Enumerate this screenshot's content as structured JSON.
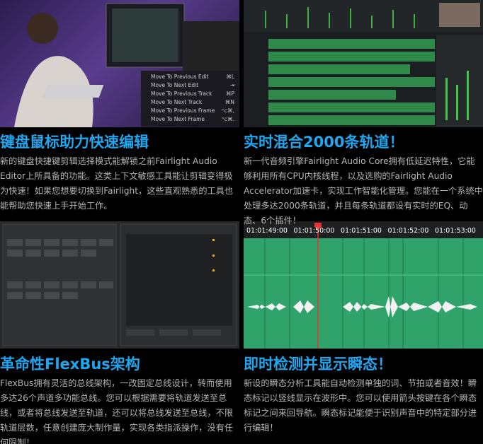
{
  "menu": [
    {
      "label": "Move To Previous Edit",
      "shortcut": "⌘L"
    },
    {
      "label": "Move To Next Edit",
      "shortcut": "⇥"
    },
    {
      "label": "Move To Previous Track",
      "shortcut": "⌘P"
    },
    {
      "label": "Move To Next Track",
      "shortcut": "⌘N"
    },
    {
      "label": "Move To Previous Frame",
      "shortcut": "⌥⌘,"
    },
    {
      "label": "Move To Next Frame",
      "shortcut": "⌥⌘."
    }
  ],
  "sections": [
    {
      "title": "键盘鼠标助力快速编辑",
      "body": "新的键盘快捷键剪辑选择模式能解锁之前Fairlight Audio Editor上所具备的功能。这类上下文敏感工具能让剪辑变得极为快速！如果您想要切换到Fairlight，这些直观熟悉的工具也能帮助您快速上手开始工作。"
    },
    {
      "title": "实时混合2000条轨道！",
      "body": "新一代音频引擎Fairlight Audio Core拥有低延迟特性，它能够利用所有CPU内核线程，以及选购的Fairlight Audio Accelerator加速卡，实现工作智能化管理。您能在一个系统中处理多达2000条轨道，并且每条轨道都设有实时的EQ、动态、6个插件！"
    },
    {
      "title": "革命性FlexBus架构",
      "body": "FlexBus拥有灵活的总线架构，一改固定总线设计，转而使用多达26个声道多功能总线。您可以根据需要将轨道发送至总线，或者将总线发送至轨道，还可以将总线发送至总线，不限轨道层数，任意创建庞大制作量，实现各类指派操作，没有任何限制！"
    },
    {
      "title": "即时检测并显示瞬态！",
      "body": "新设的瞬态分析工具能自动检测单独的词、节拍或者音效！瞬态标记以竖线显示在波形中。您可以使用箭头按键在各个瞬态标记之间来回导航。瞬态标记能便于识别声音中的特定部分进行编辑！"
    }
  ],
  "timeline": {
    "timecodes": [
      "01:01:49:00",
      "01:01:50:00",
      "01:01:51:00",
      "01:01:52:00",
      "01:01:53:00"
    ]
  }
}
